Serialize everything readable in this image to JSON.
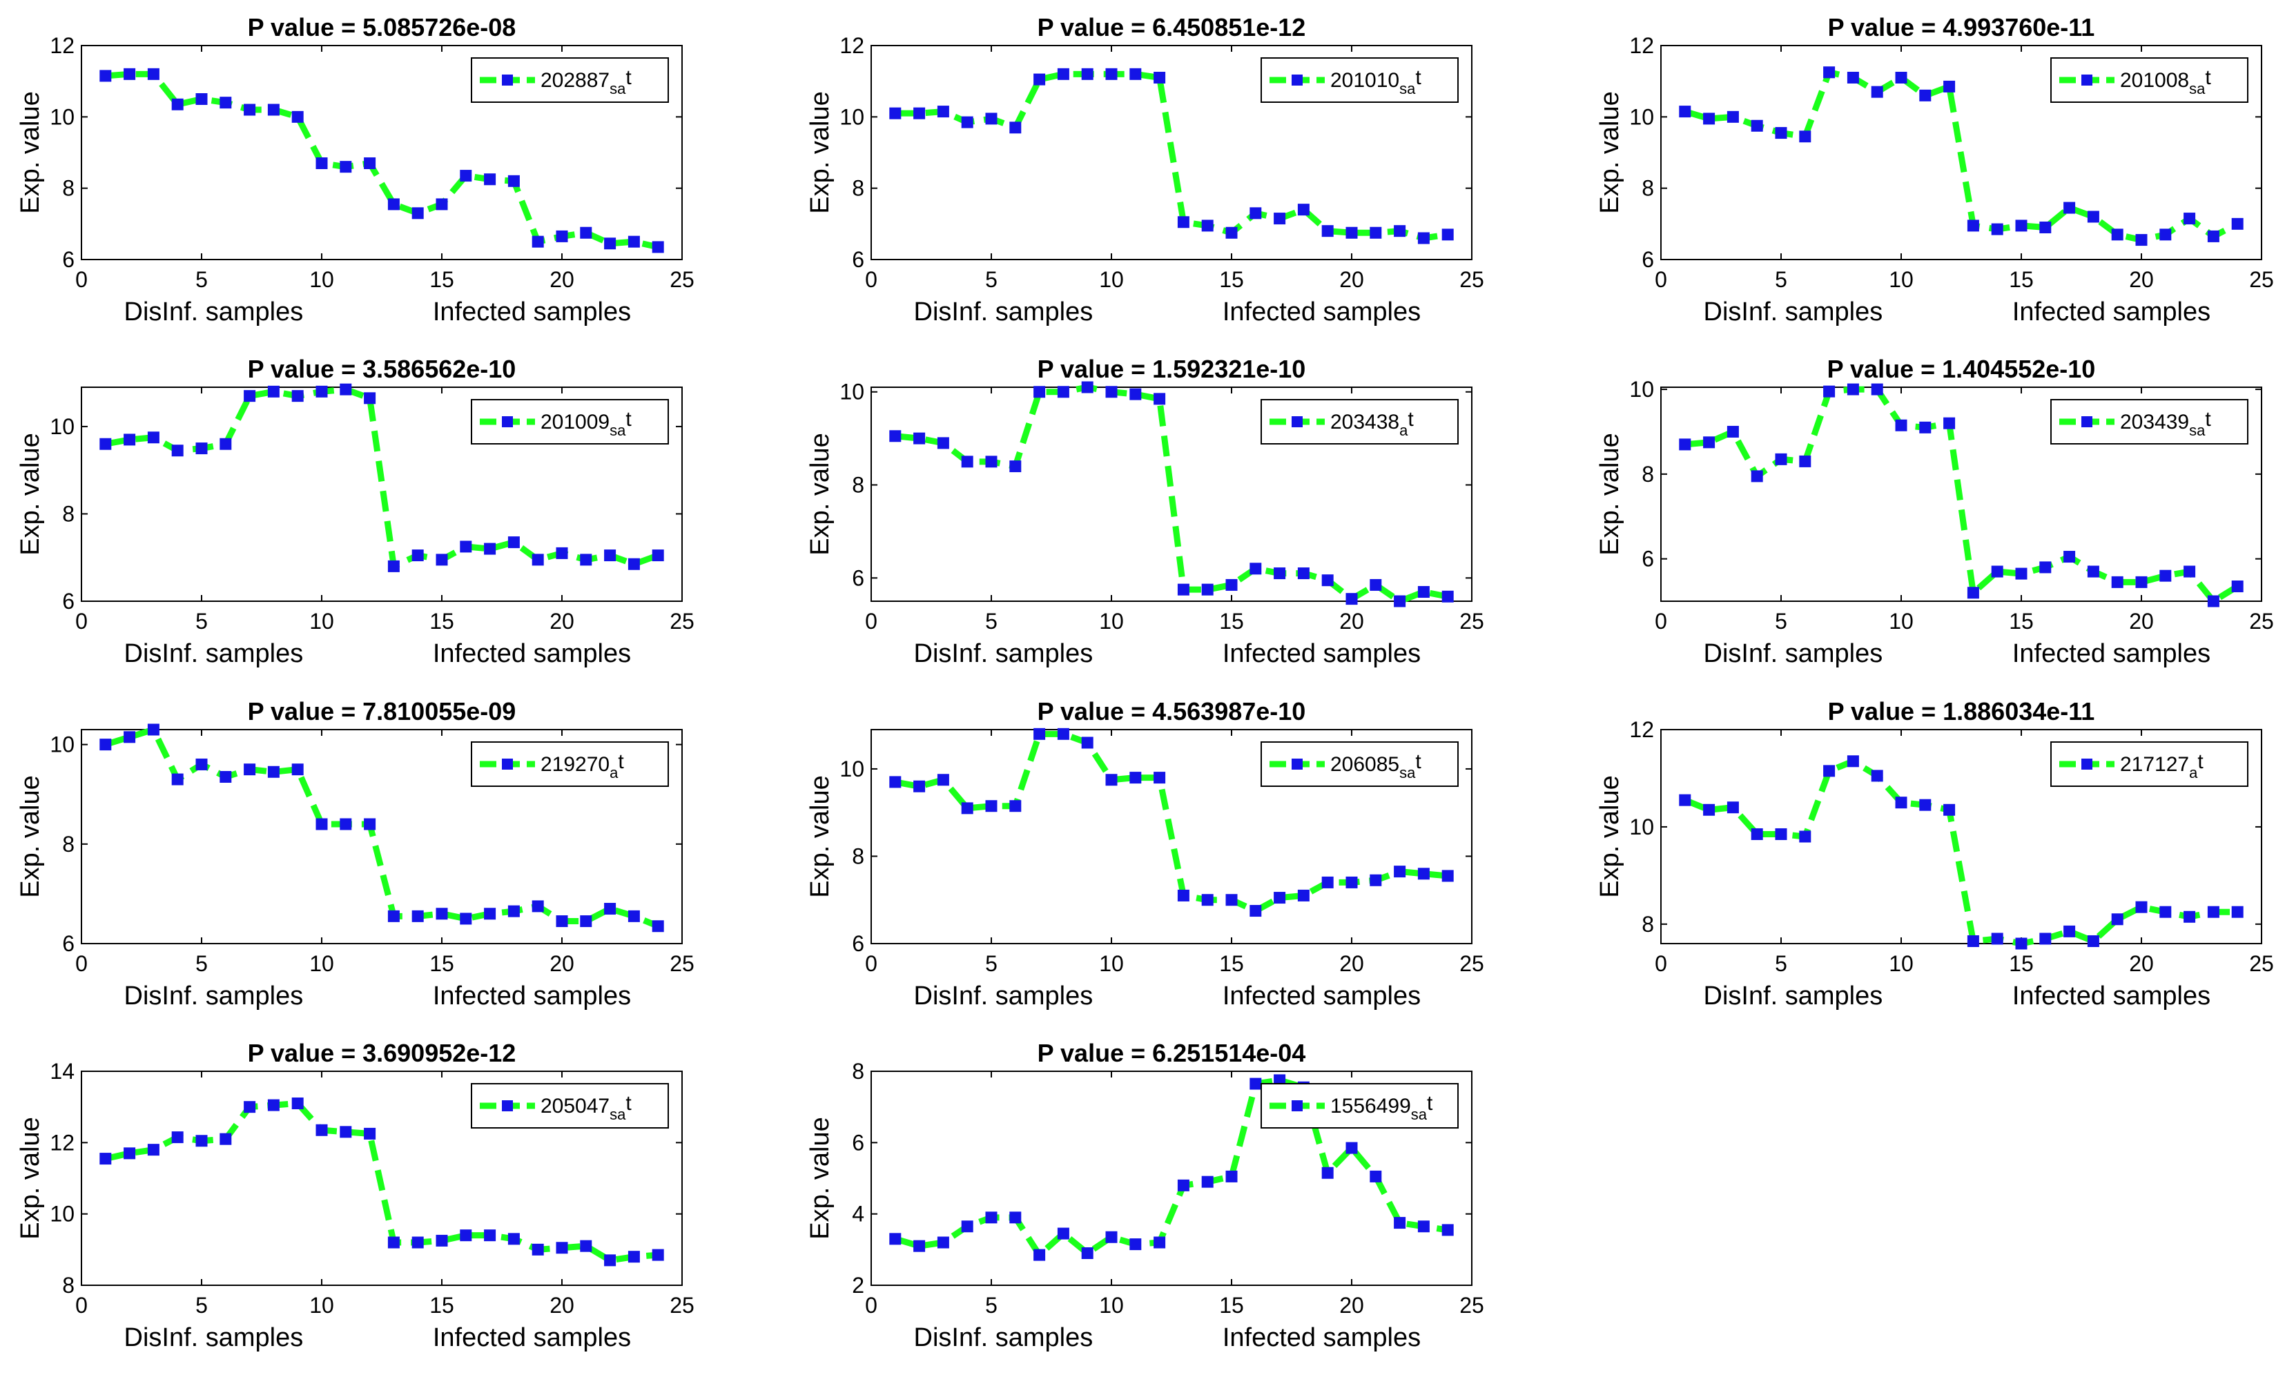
{
  "chart_data": [
    {
      "type": "line",
      "title": "P value = 5.085726e-08",
      "ylabel": "Exp. value",
      "xlabel_left": "DisInf. samples",
      "xlabel_right": "Infected samples",
      "xlim": [
        0,
        25
      ],
      "ylim": [
        6,
        12
      ],
      "xticks": [
        0,
        5,
        10,
        15,
        20,
        25
      ],
      "yticks": [
        6,
        8,
        10,
        12
      ],
      "legend": {
        "main": "202887",
        "sub": "sa",
        "suffix": "t"
      },
      "series": [
        {
          "name": "202887_sat",
          "x": [
            1,
            2,
            3,
            4,
            5,
            6,
            7,
            8,
            9,
            10,
            11,
            12,
            13,
            14,
            15,
            16,
            17,
            18,
            19,
            20,
            21,
            22,
            23,
            24
          ],
          "values": [
            11.15,
            11.2,
            11.2,
            10.35,
            10.5,
            10.4,
            10.2,
            10.2,
            10.0,
            8.7,
            8.6,
            8.7,
            7.55,
            7.3,
            7.55,
            8.35,
            8.25,
            8.2,
            6.5,
            6.65,
            6.75,
            6.45,
            6.5,
            6.35
          ]
        }
      ]
    },
    {
      "type": "line",
      "title": "P value = 6.450851e-12",
      "ylabel": "Exp. value",
      "xlabel_left": "DisInf. samples",
      "xlabel_right": "Infected samples",
      "xlim": [
        0,
        25
      ],
      "ylim": [
        6,
        12
      ],
      "xticks": [
        0,
        5,
        10,
        15,
        20,
        25
      ],
      "yticks": [
        6,
        8,
        10,
        12
      ],
      "legend": {
        "main": "201010",
        "sub": "sa",
        "suffix": "t"
      },
      "series": [
        {
          "name": "201010_sat",
          "x": [
            1,
            2,
            3,
            4,
            5,
            6,
            7,
            8,
            9,
            10,
            11,
            12,
            13,
            14,
            15,
            16,
            17,
            18,
            19,
            20,
            21,
            22,
            23,
            24
          ],
          "values": [
            10.1,
            10.1,
            10.15,
            9.85,
            9.95,
            9.7,
            11.05,
            11.2,
            11.2,
            11.2,
            11.2,
            11.1,
            7.05,
            6.95,
            6.75,
            7.3,
            7.15,
            7.4,
            6.8,
            6.75,
            6.75,
            6.8,
            6.6,
            6.7
          ]
        }
      ]
    },
    {
      "type": "line",
      "title": "P value = 4.993760e-11",
      "ylabel": "Exp. value",
      "xlabel_left": "DisInf. samples",
      "xlabel_right": "Infected samples",
      "xlim": [
        0,
        25
      ],
      "ylim": [
        6,
        12
      ],
      "xticks": [
        0,
        5,
        10,
        15,
        20,
        25
      ],
      "yticks": [
        6,
        8,
        10,
        12
      ],
      "legend": {
        "main": "201008",
        "sub": "sa",
        "suffix": "t"
      },
      "series": [
        {
          "name": "201008_sat",
          "x": [
            1,
            2,
            3,
            4,
            5,
            6,
            7,
            8,
            9,
            10,
            11,
            12,
            13,
            14,
            15,
            16,
            17,
            18,
            19,
            20,
            21,
            22,
            23,
            24
          ],
          "values": [
            10.15,
            9.95,
            10.0,
            9.75,
            9.55,
            9.45,
            11.25,
            11.1,
            10.7,
            11.1,
            10.6,
            10.85,
            6.95,
            6.85,
            6.95,
            6.9,
            7.45,
            7.2,
            6.7,
            6.55,
            6.7,
            7.15,
            6.65,
            7.0
          ]
        }
      ]
    },
    {
      "type": "line",
      "title": "P value = 3.586562e-10",
      "ylabel": "Exp. value",
      "xlabel_left": "DisInf. samples",
      "xlabel_right": "Infected samples",
      "xlim": [
        0,
        25
      ],
      "ylim": [
        6,
        10.9
      ],
      "xticks": [
        0,
        5,
        10,
        15,
        20,
        25
      ],
      "yticks": [
        6,
        8,
        10
      ],
      "legend": {
        "main": "201009",
        "sub": "sa",
        "suffix": "t"
      },
      "series": [
        {
          "name": "201009_sat",
          "x": [
            1,
            2,
            3,
            4,
            5,
            6,
            7,
            8,
            9,
            10,
            11,
            12,
            13,
            14,
            15,
            16,
            17,
            18,
            19,
            20,
            21,
            22,
            23,
            24
          ],
          "values": [
            9.6,
            9.7,
            9.75,
            9.45,
            9.5,
            9.6,
            10.7,
            10.8,
            10.7,
            10.8,
            10.85,
            10.65,
            6.8,
            7.05,
            6.95,
            7.25,
            7.2,
            7.35,
            6.95,
            7.1,
            6.95,
            7.05,
            6.85,
            7.05
          ]
        }
      ]
    },
    {
      "type": "line",
      "title": "P value = 1.592321e-10",
      "ylabel": "Exp. value",
      "xlabel_left": "DisInf. samples",
      "xlabel_right": "Infected samples",
      "xlim": [
        0,
        25
      ],
      "ylim": [
        5.5,
        10.1
      ],
      "xticks": [
        0,
        5,
        10,
        15,
        20,
        25
      ],
      "yticks": [
        6,
        8,
        10
      ],
      "legend": {
        "main": "203438",
        "sub": "a",
        "suffix": "t"
      },
      "series": [
        {
          "name": "203438_at",
          "x": [
            1,
            2,
            3,
            4,
            5,
            6,
            7,
            8,
            9,
            10,
            11,
            12,
            13,
            14,
            15,
            16,
            17,
            18,
            19,
            20,
            21,
            22,
            23,
            24
          ],
          "values": [
            9.05,
            9.0,
            8.9,
            8.5,
            8.5,
            8.4,
            10.0,
            10.0,
            10.1,
            10.0,
            9.95,
            9.85,
            5.75,
            5.75,
            5.85,
            6.2,
            6.1,
            6.1,
            5.95,
            5.55,
            5.85,
            5.5,
            5.7,
            5.6
          ]
        }
      ]
    },
    {
      "type": "line",
      "title": "P value = 1.404552e-10",
      "ylabel": "Exp. value",
      "xlabel_left": "DisInf. samples",
      "xlabel_right": "Infected samples",
      "xlim": [
        0,
        25
      ],
      "ylim": [
        5,
        10.05
      ],
      "xticks": [
        0,
        5,
        10,
        15,
        20,
        25
      ],
      "yticks": [
        6,
        8,
        10
      ],
      "legend": {
        "main": "203439",
        "sub": "sa",
        "suffix": "t"
      },
      "series": [
        {
          "name": "203439_sat",
          "x": [
            1,
            2,
            3,
            4,
            5,
            6,
            7,
            8,
            9,
            10,
            11,
            12,
            13,
            14,
            15,
            16,
            17,
            18,
            19,
            20,
            21,
            22,
            23,
            24
          ],
          "values": [
            8.7,
            8.75,
            9.0,
            7.95,
            8.35,
            8.3,
            9.95,
            10.0,
            10.0,
            9.15,
            9.1,
            9.2,
            5.2,
            5.7,
            5.65,
            5.8,
            6.05,
            5.7,
            5.45,
            5.45,
            5.6,
            5.7,
            5.0,
            5.35
          ]
        }
      ]
    },
    {
      "type": "line",
      "title": "P value = 7.810055e-09",
      "ylabel": "Exp. value",
      "xlabel_left": "DisInf. samples",
      "xlabel_right": "Infected samples",
      "xlim": [
        0,
        25
      ],
      "ylim": [
        6,
        10.3
      ],
      "xticks": [
        0,
        5,
        10,
        15,
        20,
        25
      ],
      "yticks": [
        6,
        8,
        10
      ],
      "legend": {
        "main": "219270",
        "sub": "a",
        "suffix": "t"
      },
      "series": [
        {
          "name": "219270_at",
          "x": [
            1,
            2,
            3,
            4,
            5,
            6,
            7,
            8,
            9,
            10,
            11,
            12,
            13,
            14,
            15,
            16,
            17,
            18,
            19,
            20,
            21,
            22,
            23,
            24
          ],
          "values": [
            10.0,
            10.15,
            10.3,
            9.3,
            9.6,
            9.35,
            9.5,
            9.45,
            9.5,
            8.4,
            8.4,
            8.4,
            6.55,
            6.55,
            6.6,
            6.5,
            6.6,
            6.65,
            6.75,
            6.45,
            6.45,
            6.7,
            6.55,
            6.35
          ]
        }
      ]
    },
    {
      "type": "line",
      "title": "P value = 4.563987e-10",
      "ylabel": "Exp. value",
      "xlabel_left": "DisInf. samples",
      "xlabel_right": "Infected samples",
      "xlim": [
        0,
        25
      ],
      "ylim": [
        6,
        10.9
      ],
      "xticks": [
        0,
        5,
        10,
        15,
        20,
        25
      ],
      "yticks": [
        6,
        8,
        10
      ],
      "legend": {
        "main": "206085",
        "sub": "sa",
        "suffix": "t"
      },
      "series": [
        {
          "name": "206085_sat",
          "x": [
            1,
            2,
            3,
            4,
            5,
            6,
            7,
            8,
            9,
            10,
            11,
            12,
            13,
            14,
            15,
            16,
            17,
            18,
            19,
            20,
            21,
            22,
            23,
            24
          ],
          "values": [
            9.7,
            9.6,
            9.75,
            9.1,
            9.15,
            9.15,
            10.8,
            10.8,
            10.6,
            9.75,
            9.8,
            9.8,
            7.1,
            7.0,
            7.0,
            6.75,
            7.05,
            7.1,
            7.4,
            7.4,
            7.45,
            7.65,
            7.6,
            7.55
          ]
        }
      ]
    },
    {
      "type": "line",
      "title": "P value = 1.886034e-11",
      "ylabel": "Exp. value",
      "xlabel_left": "DisInf. samples",
      "xlabel_right": "Infected samples",
      "xlim": [
        0,
        25
      ],
      "ylim": [
        7.6,
        12
      ],
      "xticks": [
        0,
        5,
        10,
        15,
        20,
        25
      ],
      "yticks": [
        8,
        10,
        12
      ],
      "legend": {
        "main": "217127",
        "sub": "a",
        "suffix": "t"
      },
      "series": [
        {
          "name": "217127_at",
          "x": [
            1,
            2,
            3,
            4,
            5,
            6,
            7,
            8,
            9,
            10,
            11,
            12,
            13,
            14,
            15,
            16,
            17,
            18,
            19,
            20,
            21,
            22,
            23,
            24
          ],
          "values": [
            10.55,
            10.35,
            10.4,
            9.85,
            9.85,
            9.8,
            11.15,
            11.35,
            11.05,
            10.5,
            10.45,
            10.35,
            7.65,
            7.7,
            7.6,
            7.7,
            7.85,
            7.65,
            8.1,
            8.35,
            8.25,
            8.15,
            8.25,
            8.25
          ]
        }
      ]
    },
    {
      "type": "line",
      "title": "P value = 3.690952e-12",
      "ylabel": "Exp. value",
      "xlabel_left": "DisInf. samples",
      "xlabel_right": "Infected samples",
      "xlim": [
        0,
        25
      ],
      "ylim": [
        8,
        14
      ],
      "xticks": [
        0,
        5,
        10,
        15,
        20,
        25
      ],
      "yticks": [
        8,
        10,
        12,
        14
      ],
      "legend": {
        "main": "205047",
        "sub": "sa",
        "suffix": "t"
      },
      "series": [
        {
          "name": "205047_sat",
          "x": [
            1,
            2,
            3,
            4,
            5,
            6,
            7,
            8,
            9,
            10,
            11,
            12,
            13,
            14,
            15,
            16,
            17,
            18,
            19,
            20,
            21,
            22,
            23,
            24
          ],
          "values": [
            11.55,
            11.7,
            11.8,
            12.15,
            12.05,
            12.1,
            13.0,
            13.05,
            13.1,
            12.35,
            12.3,
            12.25,
            9.2,
            9.2,
            9.25,
            9.4,
            9.4,
            9.3,
            9.0,
            9.05,
            9.1,
            8.7,
            8.8,
            8.85
          ]
        }
      ]
    },
    {
      "type": "line",
      "title": "P value = 6.251514e-04",
      "ylabel": "Exp. value",
      "xlabel_left": "DisInf. samples",
      "xlabel_right": "Infected samples",
      "xlim": [
        0,
        25
      ],
      "ylim": [
        2,
        8
      ],
      "xticks": [
        0,
        5,
        10,
        15,
        20,
        25
      ],
      "yticks": [
        2,
        4,
        6,
        8
      ],
      "legend": {
        "main": "1556499",
        "sub": "sa",
        "suffix": "t"
      },
      "series": [
        {
          "name": "1556499_sat",
          "x": [
            1,
            2,
            3,
            4,
            5,
            6,
            7,
            8,
            9,
            10,
            11,
            12,
            13,
            14,
            15,
            16,
            17,
            18,
            19,
            20,
            21,
            22,
            23,
            24
          ],
          "values": [
            3.3,
            3.1,
            3.2,
            3.65,
            3.9,
            3.9,
            2.85,
            3.45,
            2.9,
            3.35,
            3.15,
            3.2,
            4.8,
            4.9,
            5.05,
            7.65,
            7.75,
            7.55,
            5.15,
            5.85,
            5.05,
            3.75,
            3.65,
            3.55
          ]
        }
      ]
    }
  ]
}
